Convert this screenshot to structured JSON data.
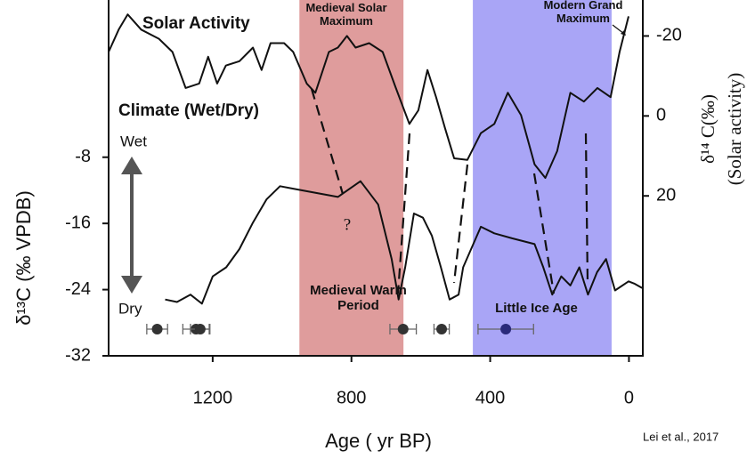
{
  "chart_data": {
    "type": "line",
    "xlabel": "Age ( yr BP)",
    "ylabel": "δ¹³C (‰ VPDB)",
    "y2label": [
      "δ¹⁴ C(‰)",
      "(Solar activity)"
    ],
    "xlim": [
      1500,
      -40
    ],
    "xticks": [
      1200,
      800,
      400,
      0
    ],
    "ylim": [
      -32,
      11
    ],
    "yticks": [
      -8,
      -16,
      -24,
      -32
    ],
    "y2lim": [
      60,
      -29
    ],
    "y2ticks": [
      -20,
      0,
      20
    ],
    "series": [
      {
        "name": "Solar Activity",
        "color": "#111111",
        "axis": "y2",
        "x": [
          1500,
          1471,
          1445,
          1406,
          1355,
          1316,
          1278,
          1239,
          1213,
          1187,
          1162,
          1123,
          1084,
          1059,
          1033,
          994,
          968,
          929,
          904,
          865,
          839,
          813,
          788,
          749,
          710,
          672,
          633,
          607,
          581,
          556,
          530,
          504,
          466,
          427,
          388,
          349,
          311,
          272,
          241,
          207,
          169,
          130,
          91,
          53,
          27,
          1
        ],
        "values": [
          -16,
          -21.6,
          -25.4,
          -21.6,
          -19.3,
          -16,
          -7,
          -8.1,
          -14.8,
          -8.1,
          -12.6,
          -13.7,
          -17.1,
          -11.5,
          -18.2,
          -18.2,
          -16,
          -8.1,
          -5.8,
          -16,
          -17.1,
          -20,
          -17.1,
          -18.2,
          -16,
          -7,
          2,
          -1.4,
          -11.5,
          -4.7,
          3.1,
          10.6,
          11,
          4.3,
          2,
          -5.8,
          -0.2,
          12.1,
          15.5,
          8.8,
          -5.8,
          -3.6,
          -7,
          -4.7,
          -16,
          -24.9
        ]
      },
      {
        "name": "Climate (Wet/Dry)",
        "color": "#111111",
        "x": [
          1337,
          1303,
          1264,
          1231,
          1200,
          1161,
          1123,
          1084,
          1045,
          1006,
          968,
          839,
          774,
          723,
          684,
          664,
          645,
          620,
          594,
          568,
          542,
          517,
          491,
          478,
          427,
          388,
          337,
          272,
          247,
          221,
          195,
          169,
          143,
          118,
          92,
          66,
          40,
          1,
          -17,
          -38
        ],
        "values": [
          -25.2,
          -25.5,
          -24.6,
          -25.7,
          -22.4,
          -21.3,
          -19.1,
          -15.9,
          -13.1,
          -11.5,
          -11.8,
          -12.8,
          -10.9,
          -13.7,
          -20.3,
          -25.2,
          -21.3,
          -14.8,
          -15.3,
          -17.5,
          -21.3,
          -25.2,
          -24.6,
          -21.3,
          -16.4,
          -17.2,
          -17.8,
          -18.5,
          -21.3,
          -24.6,
          -22.4,
          -23.5,
          -21.3,
          -24.6,
          -21.9,
          -20.3,
          -24.1,
          -23.0,
          -23.3,
          -23.8
        ]
      }
    ],
    "shaded_regions": [
      {
        "label": "Medieval Warm Period",
        "top_label": "Medieval Solar Maximum",
        "range": [
          950,
          650
        ],
        "color": "#df9c9c"
      },
      {
        "label": "Little Ice Age",
        "range": [
          450,
          50
        ],
        "color": "#a9a5f6"
      }
    ],
    "dates": [
      {
        "age": 1360,
        "error": 30,
        "color": "#333333"
      },
      {
        "age": 1248,
        "error": 38,
        "color": "#333333"
      },
      {
        "age": 1236,
        "error": 28,
        "color": "#333333"
      },
      {
        "age": 651,
        "error": 38,
        "color": "#333333"
      },
      {
        "age": 540,
        "error": 22,
        "color": "#333333"
      },
      {
        "age": 355,
        "error": 80,
        "color": "#2a2a7a"
      }
    ],
    "annotations": {
      "modern": "Modern Grand Maximum",
      "wet": "Wet",
      "dry": "Dry",
      "question": "?",
      "source": "Lei et al., 2017"
    }
  }
}
